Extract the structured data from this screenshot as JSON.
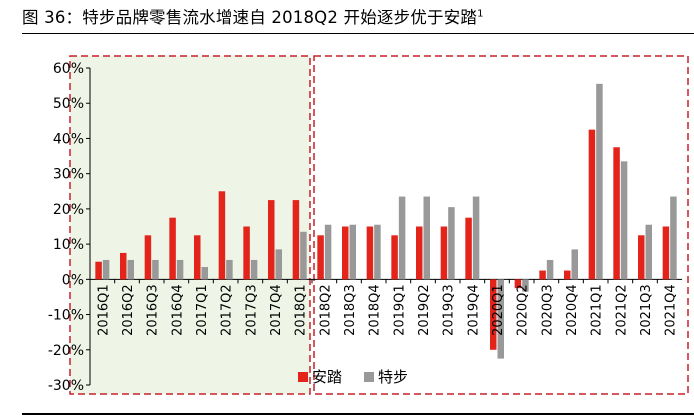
{
  "figure": {
    "title_prefix": "图 36：",
    "title_main": "特步品牌零售流水增速自 2018Q2 开始逐步优于安踏",
    "title_sup": "1"
  },
  "colors": {
    "anta": "#e3241b",
    "xtep": "#999999",
    "highlight_fill": "#eef5e6",
    "highlight_border": "#c8202a",
    "axis": "#000000"
  },
  "chart_data": {
    "type": "bar",
    "categories": [
      "2016Q1",
      "2016Q2",
      "2016Q3",
      "2016Q4",
      "2017Q1",
      "2017Q2",
      "2017Q3",
      "2017Q4",
      "2018Q1",
      "2018Q2",
      "2018Q3",
      "2018Q4",
      "2019Q1",
      "2019Q2",
      "2019Q3",
      "2019Q4",
      "2020Q1",
      "2020Q2",
      "2020Q3",
      "2020Q4",
      "2021Q1",
      "2021Q2",
      "2021Q3",
      "2021Q4"
    ],
    "series": [
      {
        "name": "安踏",
        "values": [
          5,
          7.5,
          12.5,
          17.5,
          12.5,
          25,
          15,
          22.5,
          22.5,
          12.5,
          15,
          15,
          12.5,
          15,
          15,
          17.5,
          -20,
          -2.5,
          2.5,
          2.5,
          42.5,
          37.5,
          12.5,
          15
        ]
      },
      {
        "name": "特步",
        "values": [
          5.5,
          5.5,
          5.5,
          5.5,
          3.5,
          5.5,
          5.5,
          8.5,
          13.5,
          15.5,
          15.5,
          15.5,
          23.5,
          23.5,
          20.5,
          23.5,
          -22.5,
          -3.5,
          5.5,
          8.5,
          55.5,
          33.5,
          15.5,
          23.5
        ]
      }
    ],
    "ylim": [
      -30,
      60
    ],
    "yticks": [
      -30,
      -20,
      -10,
      0,
      10,
      20,
      30,
      40,
      50,
      60
    ],
    "ytick_labels": [
      "-30%",
      "-20%",
      "-10%",
      "0%",
      "10%",
      "20%",
      "30%",
      "40%",
      "50%",
      "60%"
    ],
    "grid": false,
    "legend_position": "bottom-center",
    "highlight_regions": [
      {
        "from": "2016Q1",
        "to": "2018Q1",
        "style": "green-shaded"
      },
      {
        "from": "2018Q2",
        "to": "2021Q4",
        "style": "plain"
      }
    ]
  }
}
